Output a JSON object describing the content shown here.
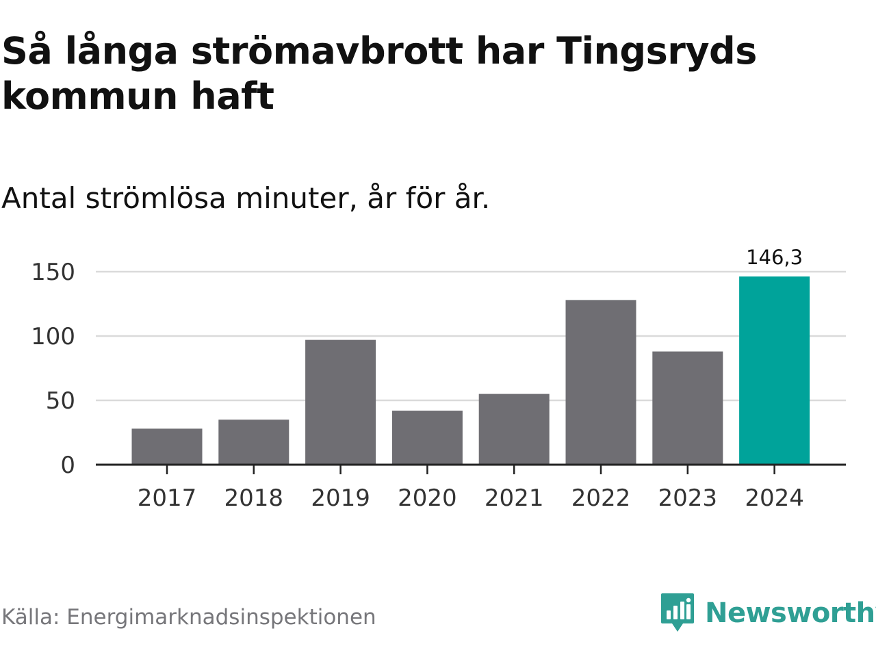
{
  "title": "Så långa strömavbrott har Tingsryds kommun haft",
  "subtitle": "Antal strömlösa minuter, år för år.",
  "source": "Källa: Energimarknadsinspektionen",
  "brand": {
    "name": "Newsworthy",
    "icon": "newsworthy-logo-icon",
    "color": "#2f9f94"
  },
  "colors": {
    "bar": "#6f6e73",
    "highlight": "#00a39a",
    "grid": "#dadada",
    "axis": "#222222"
  },
  "chart_data": {
    "type": "bar",
    "title": "Så långa strömavbrott har Tingsryds kommun haft",
    "subtitle": "Antal strömlösa minuter, år för år.",
    "categories": [
      "2017",
      "2018",
      "2019",
      "2020",
      "2021",
      "2022",
      "2023",
      "2024"
    ],
    "values": [
      28,
      35,
      97,
      42,
      55,
      128,
      88,
      146.3
    ],
    "highlight_index": 7,
    "annotations": [
      {
        "index": 7,
        "text": "146,3"
      }
    ],
    "xlabel": "",
    "ylabel": "",
    "ylim": [
      0,
      150
    ],
    "yticks": [
      0,
      50,
      100,
      150
    ],
    "grid": true,
    "legend": "none"
  }
}
